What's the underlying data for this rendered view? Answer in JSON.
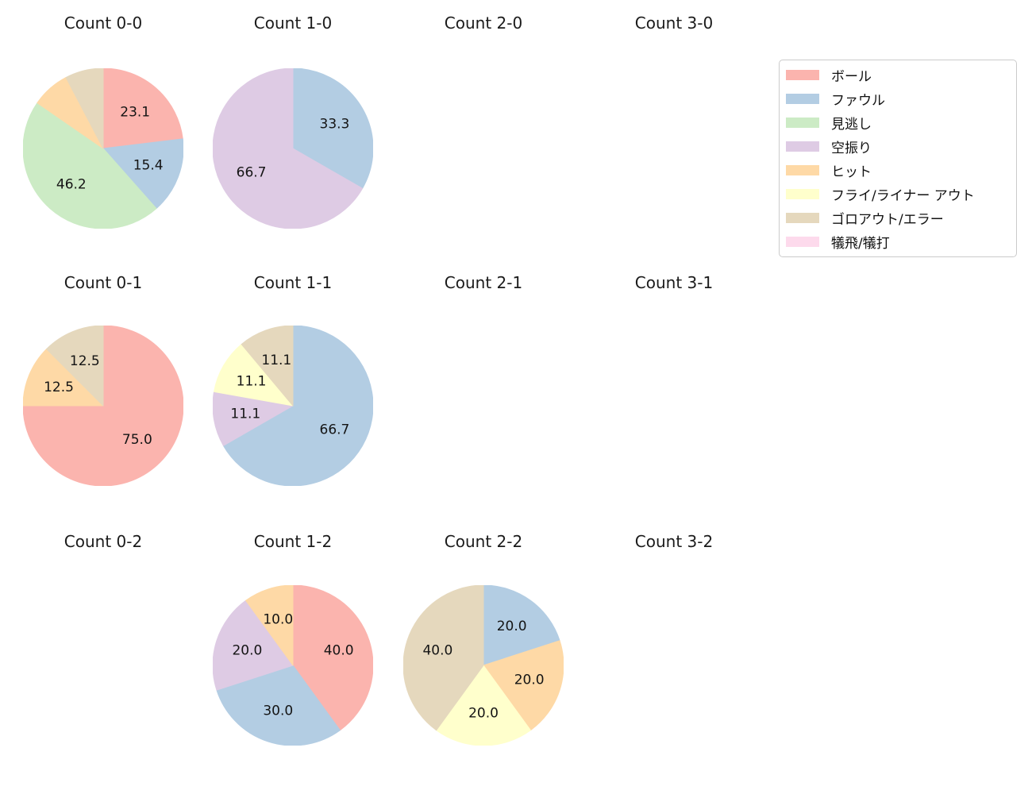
{
  "legend": {
    "items": [
      {
        "label": "ボール",
        "color": "#fbb4ae"
      },
      {
        "label": "ファウル",
        "color": "#b3cde3"
      },
      {
        "label": "見逃し",
        "color": "#ccebc5"
      },
      {
        "label": "空振り",
        "color": "#decbe4"
      },
      {
        "label": "ヒット",
        "color": "#fed9a6"
      },
      {
        "label": "フライ/ライナー アウト",
        "color": "#ffffcc"
      },
      {
        "label": "ゴロアウト/エラー",
        "color": "#e5d8bd"
      },
      {
        "label": "犠飛/犠打",
        "color": "#fddaec"
      }
    ]
  },
  "chart_data": {
    "type": "pie",
    "grid": {
      "rows": 3,
      "cols": 4
    },
    "start_angle_deg": 90,
    "direction": "clockwise",
    "pct_distance": 0.6,
    "pies": [
      {
        "title": "Count 0-0",
        "row": 0,
        "col": 0,
        "slices": [
          {
            "legend": "ボール",
            "value": 23.1,
            "label": "23.1"
          },
          {
            "legend": "ファウル",
            "value": 15.4,
            "label": "15.4"
          },
          {
            "legend": "見逃し",
            "value": 46.2,
            "label": "46.2"
          },
          {
            "legend": "ヒット",
            "value": 7.7,
            "label": ""
          },
          {
            "legend": "ゴロアウト/エラー",
            "value": 7.7,
            "label": ""
          }
        ]
      },
      {
        "title": "Count 1-0",
        "row": 0,
        "col": 1,
        "slices": [
          {
            "legend": "ファウル",
            "value": 33.3,
            "label": "33.3"
          },
          {
            "legend": "空振り",
            "value": 66.7,
            "label": "66.7"
          }
        ]
      },
      {
        "title": "Count 2-0",
        "row": 0,
        "col": 2,
        "slices": []
      },
      {
        "title": "Count 3-0",
        "row": 0,
        "col": 3,
        "slices": []
      },
      {
        "title": "Count 0-1",
        "row": 1,
        "col": 0,
        "slices": [
          {
            "legend": "ボール",
            "value": 75.0,
            "label": "75.0"
          },
          {
            "legend": "ヒット",
            "value": 12.5,
            "label": "12.5"
          },
          {
            "legend": "ゴロアウト/エラー",
            "value": 12.5,
            "label": "12.5"
          }
        ]
      },
      {
        "title": "Count 1-1",
        "row": 1,
        "col": 1,
        "slices": [
          {
            "legend": "ファウル",
            "value": 66.7,
            "label": "66.7"
          },
          {
            "legend": "空振り",
            "value": 11.1,
            "label": "11.1"
          },
          {
            "legend": "フライ/ライナー アウト",
            "value": 11.1,
            "label": "11.1"
          },
          {
            "legend": "ゴロアウト/エラー",
            "value": 11.1,
            "label": "11.1"
          }
        ]
      },
      {
        "title": "Count 2-1",
        "row": 1,
        "col": 2,
        "slices": []
      },
      {
        "title": "Count 3-1",
        "row": 1,
        "col": 3,
        "slices": []
      },
      {
        "title": "Count 0-2",
        "row": 2,
        "col": 0,
        "slices": []
      },
      {
        "title": "Count 1-2",
        "row": 2,
        "col": 1,
        "slices": [
          {
            "legend": "ボール",
            "value": 40.0,
            "label": "40.0"
          },
          {
            "legend": "ファウル",
            "value": 30.0,
            "label": "30.0"
          },
          {
            "legend": "空振り",
            "value": 20.0,
            "label": "20.0"
          },
          {
            "legend": "ヒット",
            "value": 10.0,
            "label": "10.0"
          }
        ]
      },
      {
        "title": "Count 2-2",
        "row": 2,
        "col": 2,
        "slices": [
          {
            "legend": "ファウル",
            "value": 20.0,
            "label": "20.0"
          },
          {
            "legend": "ヒット",
            "value": 20.0,
            "label": "20.0"
          },
          {
            "legend": "フライ/ライナー アウト",
            "value": 20.0,
            "label": "20.0"
          },
          {
            "legend": "ゴロアウト/エラー",
            "value": 40.0,
            "label": "40.0"
          }
        ]
      },
      {
        "title": "Count 3-2",
        "row": 2,
        "col": 3,
        "slices": []
      }
    ]
  }
}
